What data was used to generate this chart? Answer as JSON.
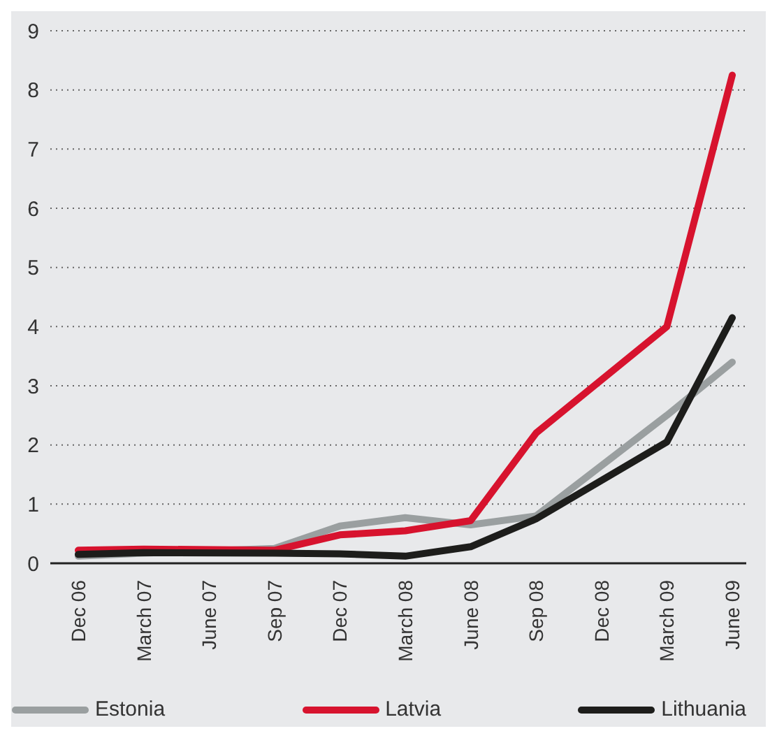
{
  "chart_data": {
    "type": "line",
    "categories": [
      "Dec 06",
      "March 07",
      "June 07",
      "Sep 07",
      "Dec 07",
      "March 08",
      "June 08",
      "Sep 08",
      "Dec 08",
      "March 09",
      "June 09"
    ],
    "ylim": [
      0,
      9
    ],
    "yticks": [
      0,
      1,
      2,
      3,
      4,
      5,
      6,
      7,
      8,
      9
    ],
    "grid": "y",
    "legend": "bottom",
    "marker": "none",
    "line_style": "solid",
    "series": [
      {
        "name": "Estonia",
        "color": "#9a9fa0",
        "values": [
          0.12,
          0.17,
          null,
          0.25,
          0.63,
          0.77,
          0.65,
          0.8,
          null,
          2.5,
          3.4
        ]
      },
      {
        "name": "Latvia",
        "color": "#d7132e",
        "values": [
          0.22,
          0.24,
          null,
          0.22,
          0.48,
          0.55,
          0.72,
          2.2,
          null,
          4.0,
          8.25
        ]
      },
      {
        "name": "Lithuania",
        "color": "#1d1d1b",
        "values": [
          0.15,
          0.18,
          null,
          0.17,
          0.16,
          0.12,
          0.28,
          0.75,
          null,
          2.05,
          4.15
        ]
      }
    ]
  }
}
